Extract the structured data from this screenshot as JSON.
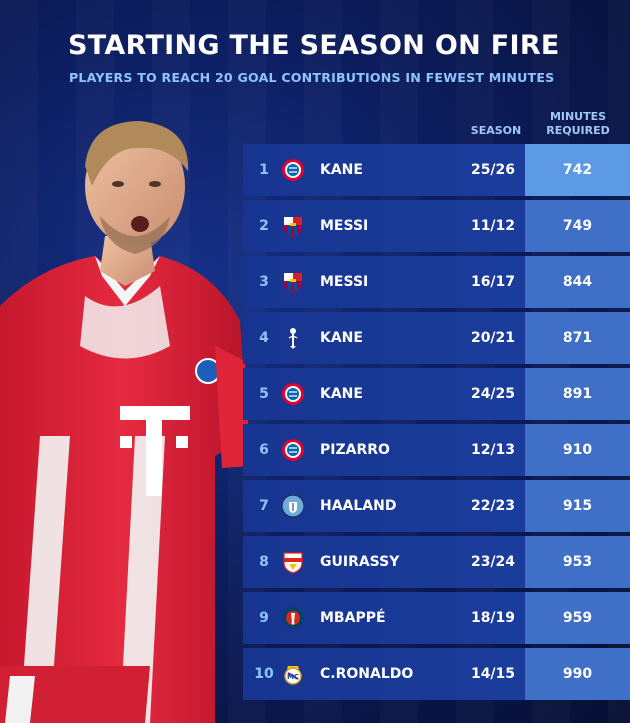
{
  "header": {
    "title": "STARTING THE SEASON ON FIRE",
    "subtitle": "PLAYERS TO REACH 20 GOAL CONTRIBUTIONS IN FEWEST MINUTES"
  },
  "columns": {
    "season": "SEASON",
    "minutes_line1": "MINUTES",
    "minutes_line2": "REQUIRED"
  },
  "rows": [
    {
      "rank": "1",
      "club": "bayern-munich-badge-icon",
      "name": "KANE",
      "season": "25/26",
      "minutes": "742"
    },
    {
      "rank": "2",
      "club": "barcelona-badge-icon",
      "name": "MESSI",
      "season": "11/12",
      "minutes": "749"
    },
    {
      "rank": "3",
      "club": "barcelona-badge-icon",
      "name": "MESSI",
      "season": "16/17",
      "minutes": "844"
    },
    {
      "rank": "4",
      "club": "tottenham-badge-icon",
      "name": "KANE",
      "season": "20/21",
      "minutes": "871"
    },
    {
      "rank": "5",
      "club": "bayern-munich-badge-icon",
      "name": "KANE",
      "season": "24/25",
      "minutes": "891"
    },
    {
      "rank": "6",
      "club": "bayern-munich-badge-icon",
      "name": "PIZARRO",
      "season": "12/13",
      "minutes": "910"
    },
    {
      "rank": "7",
      "club": "manchester-city-badge-icon",
      "name": "HAALAND",
      "season": "22/23",
      "minutes": "915"
    },
    {
      "rank": "8",
      "club": "stuttgart-badge-icon",
      "name": "GUIRASSY",
      "season": "23/24",
      "minutes": "953"
    },
    {
      "rank": "9",
      "club": "psg-badge-icon",
      "name": "MBAPPÉ",
      "season": "18/19",
      "minutes": "959"
    },
    {
      "rank": "10",
      "club": "real-madrid-badge-icon",
      "name": "C.RONALDO",
      "season": "14/15",
      "minutes": "990"
    }
  ],
  "colors": {
    "background": "#0c1d5e",
    "row": "#1c3f9f",
    "minutes_cell": "#3f6fc7",
    "minutes_cell_top": "#5c9ae6",
    "accent_text": "#8fc4ff",
    "kit_red": "#e0243a"
  }
}
